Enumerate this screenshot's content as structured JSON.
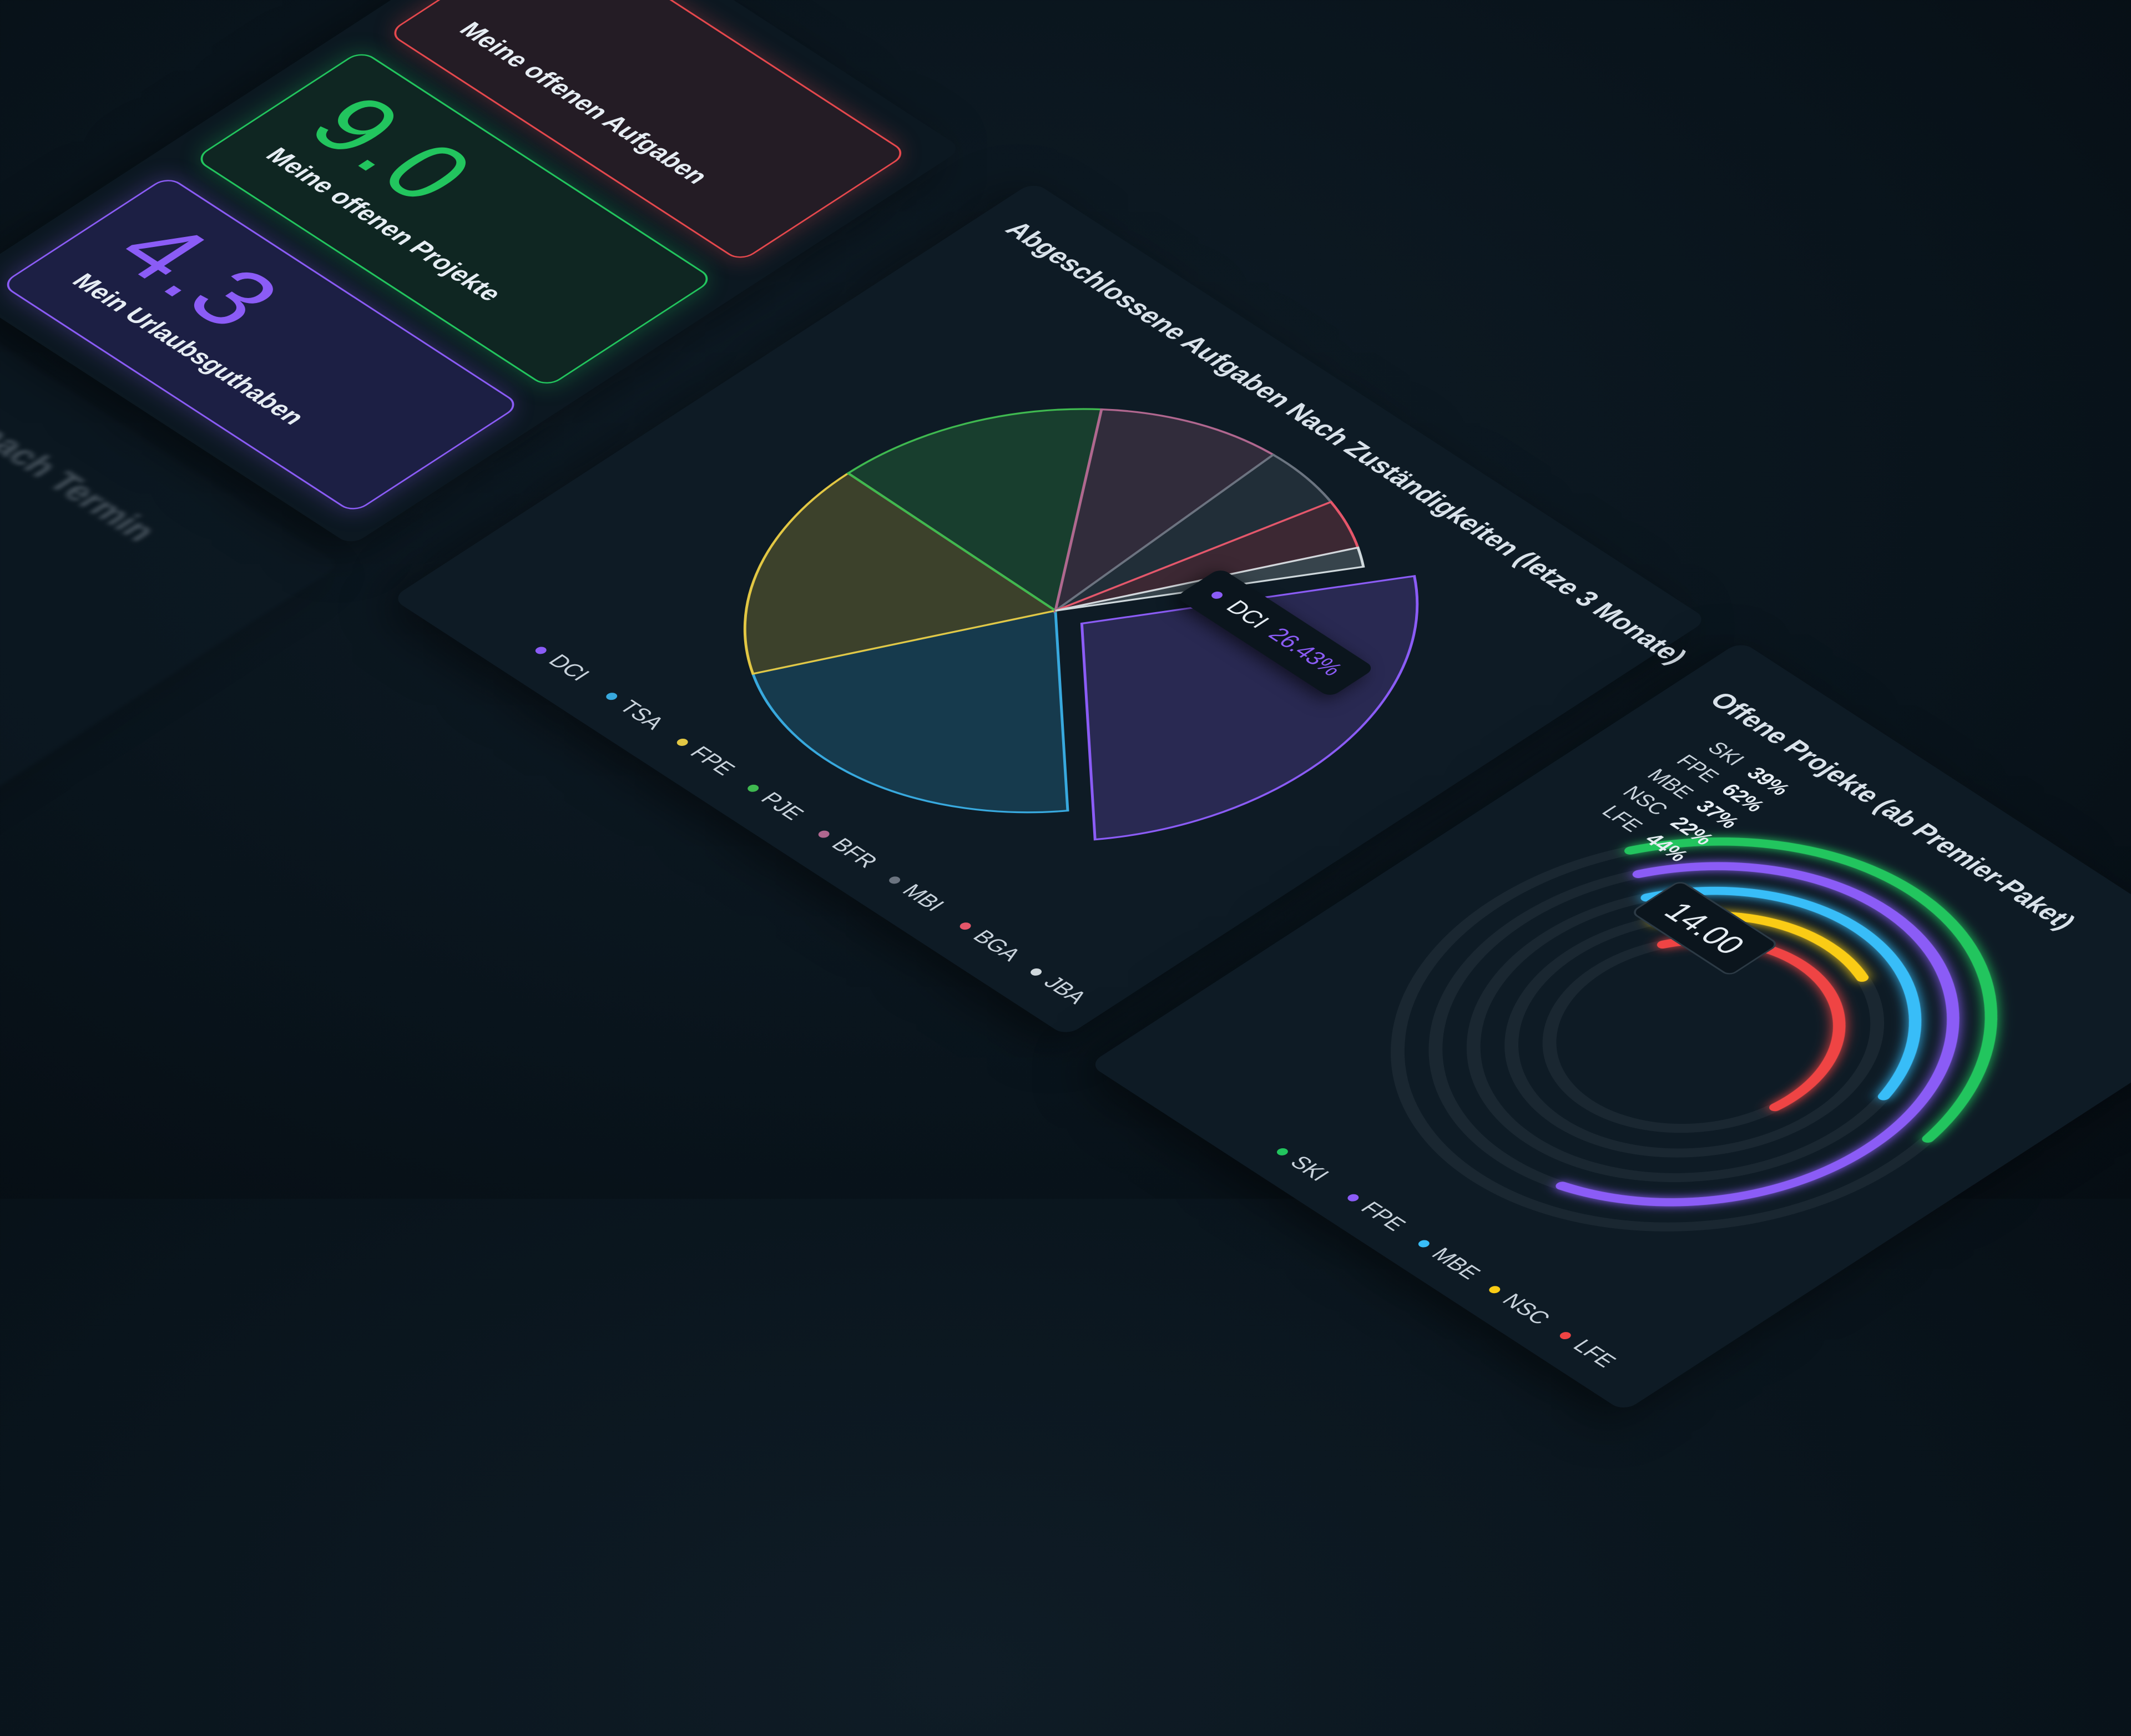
{
  "kpi_cards": [
    {
      "label": "Meine offenen Aufgaben",
      "color": "#e5484d"
    },
    {
      "value": "9.0",
      "label": "Meine offenen Projekte",
      "color": "#22c55e"
    },
    {
      "value": "4.3",
      "label": "Mein Urlaubsguthaben",
      "color": "#8b5cf6"
    }
  ],
  "blurred_panel": {
    "title": "Projekte nach Termin"
  },
  "chart_data": [
    {
      "type": "pie",
      "title": "Abgeschlossene Aufgaben Nach Zuständigkeiten (letze 3 Monate)",
      "categories": [
        "DCI",
        "TSA",
        "FPE",
        "PJE",
        "BFR",
        "MBI",
        "BGA",
        "JBA"
      ],
      "values": [
        26.43,
        22,
        17,
        14,
        10,
        5,
        4,
        1.57
      ],
      "colors": [
        "#8b5cf6",
        "#38a9de",
        "#e2c744",
        "#3fb950",
        "#b0678f",
        "#6b7480",
        "#e5566a",
        "#cfd8dc"
      ],
      "tooltip": {
        "name": "DCI",
        "value_label": "26.43%"
      }
    },
    {
      "type": "radialBar",
      "title": "Offene Projekte (ab Premier-Paket)",
      "categories": [
        "SKI",
        "FPE",
        "MBE",
        "NSC",
        "LFE"
      ],
      "values": [
        39,
        62,
        37,
        22,
        44
      ],
      "value_labels": [
        "39%",
        "62%",
        "37%",
        "22%",
        "44%"
      ],
      "colors": [
        "#22c55e",
        "#8b5cf6",
        "#38bdf8",
        "#facc15",
        "#ef4444"
      ],
      "ylim": [
        0,
        100
      ],
      "center_value": "14.00"
    }
  ]
}
